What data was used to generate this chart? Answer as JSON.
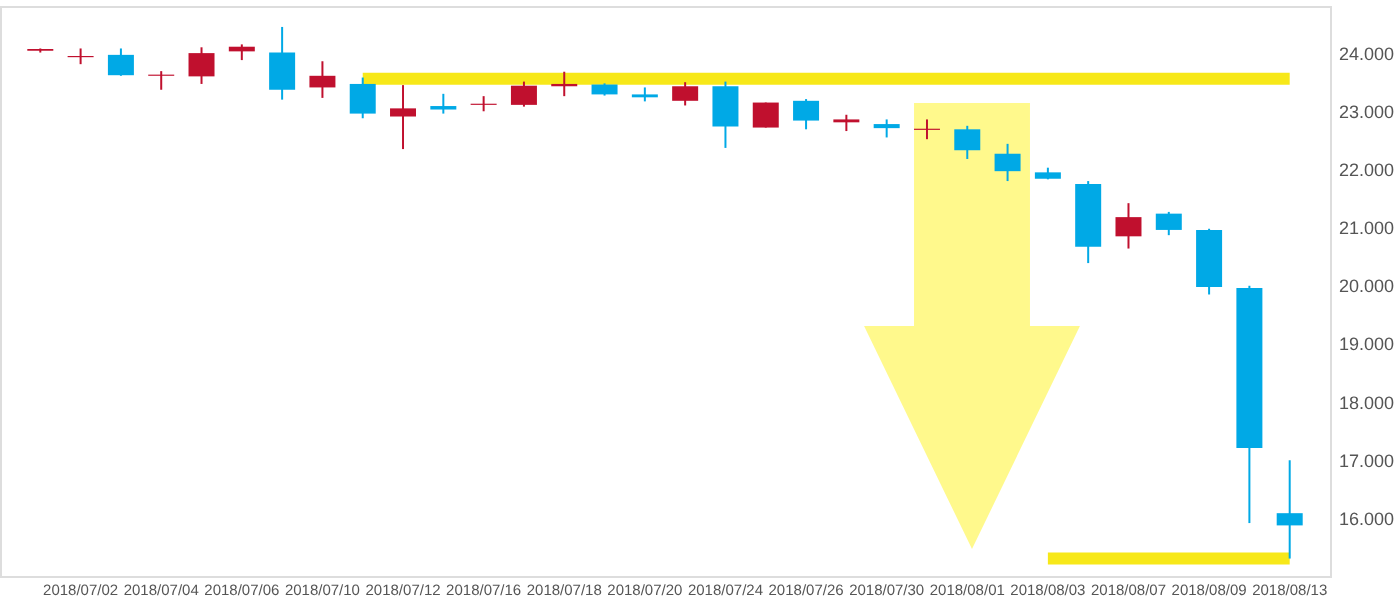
{
  "chart_data": {
    "type": "candlestick",
    "categories": [
      null,
      "2018/07/02",
      null,
      "2018/07/04",
      null,
      "2018/07/06",
      null,
      "2018/07/10",
      null,
      "2018/07/12",
      null,
      "2018/07/16",
      null,
      "2018/07/18",
      null,
      "2018/07/20",
      null,
      "2018/07/24",
      null,
      "2018/07/26",
      null,
      "2018/07/30",
      null,
      "2018/08/01",
      null,
      "2018/08/03",
      null,
      "2018/08/07",
      null,
      "2018/08/09",
      null,
      "2018/08/13"
    ],
    "ohlc": [
      [
        24.03,
        24.07,
        24.0,
        24.06
      ],
      [
        23.92,
        24.07,
        23.8,
        23.94
      ],
      [
        23.96,
        24.07,
        23.6,
        23.61
      ],
      [
        23.6,
        23.68,
        23.36,
        23.62
      ],
      [
        23.59,
        24.09,
        23.46,
        23.99
      ],
      [
        24.02,
        24.14,
        23.87,
        24.1
      ],
      [
        24.0,
        24.44,
        23.19,
        23.36
      ],
      [
        23.4,
        23.85,
        23.22,
        23.6
      ],
      [
        23.46,
        23.57,
        22.87,
        22.95
      ],
      [
        22.9,
        23.44,
        22.34,
        23.04
      ],
      [
        23.08,
        23.29,
        22.95,
        23.02
      ],
      [
        23.1,
        23.25,
        22.99,
        23.12
      ],
      [
        23.1,
        23.5,
        23.07,
        23.43
      ],
      [
        23.42,
        23.67,
        23.25,
        23.46
      ],
      [
        23.45,
        23.47,
        23.26,
        23.28
      ],
      [
        23.28,
        23.4,
        23.16,
        23.23
      ],
      [
        23.17,
        23.49,
        23.09,
        23.42
      ],
      [
        23.42,
        23.5,
        22.36,
        22.73
      ],
      [
        22.71,
        23.14,
        22.71,
        23.14
      ],
      [
        23.17,
        23.2,
        22.68,
        22.83
      ],
      [
        22.8,
        22.93,
        22.65,
        22.85
      ],
      [
        22.77,
        22.85,
        22.54,
        22.7
      ],
      [
        22.67,
        22.85,
        22.51,
        22.69
      ],
      [
        22.68,
        22.74,
        22.17,
        22.32
      ],
      [
        22.26,
        22.43,
        21.79,
        21.96
      ],
      [
        21.94,
        22.02,
        21.82,
        21.83
      ],
      [
        21.74,
        21.79,
        20.38,
        20.66
      ],
      [
        20.84,
        21.41,
        20.63,
        21.17
      ],
      [
        21.23,
        21.26,
        20.86,
        20.95
      ],
      [
        20.95,
        20.97,
        19.84,
        19.97
      ],
      [
        19.95,
        19.99,
        15.91,
        17.2
      ],
      [
        16.08,
        16.99,
        15.3,
        15.87
      ]
    ],
    "colors": [
      "#c0102e",
      "#c0102e",
      "#00a9e6",
      "#c0102e",
      "#c0102e",
      "#c0102e",
      "#00a9e6",
      "#c0102e",
      "#00a9e6",
      "#c0102e",
      "#00a9e6",
      "#c0102e",
      "#c0102e",
      "#c0102e",
      "#00a9e6",
      "#00a9e6",
      "#c0102e",
      "#00a9e6",
      "#c0102e",
      "#00a9e6",
      "#c0102e",
      "#00a9e6",
      "#c0102e",
      "#00a9e6",
      "#00a9e6",
      "#00a9e6",
      "#00a9e6",
      "#c0102e",
      "#00a9e6",
      "#00a9e6",
      "#00a9e6",
      "#00a9e6"
    ],
    "series": [
      {
        "type": "line",
        "color": "#f7e819",
        "values": [
          null,
          null,
          null,
          null,
          null,
          null,
          null,
          null,
          23.55,
          23.55,
          23.55,
          23.55,
          23.55,
          23.55,
          23.55,
          23.55,
          23.55,
          23.55,
          23.55,
          23.55,
          23.55,
          23.55,
          23.55,
          23.55,
          23.55,
          23.55,
          23.55,
          23.55,
          23.55,
          23.55,
          23.55,
          23.55
        ]
      },
      {
        "type": "line",
        "color": "#f7e819",
        "values": [
          null,
          null,
          null,
          null,
          null,
          null,
          null,
          null,
          null,
          null,
          null,
          null,
          null,
          null,
          null,
          null,
          null,
          null,
          null,
          null,
          null,
          null,
          null,
          null,
          null,
          15.3,
          15.3,
          15.3,
          15.3,
          15.3,
          15.3,
          15.3
        ]
      }
    ],
    "ylim": [
      15,
      24.8
    ],
    "yticks": [
      {
        "value": 16,
        "label": "16.000"
      },
      {
        "value": 17,
        "label": "17.000"
      },
      {
        "value": 18,
        "label": "18.000"
      },
      {
        "value": 19,
        "label": "19.000"
      },
      {
        "value": 20,
        "label": "20.000"
      },
      {
        "value": 21,
        "label": "21.000"
      },
      {
        "value": 22,
        "label": "22.000"
      },
      {
        "value": 23,
        "label": "23.000"
      },
      {
        "value": 24,
        "label": "24.000"
      }
    ]
  }
}
